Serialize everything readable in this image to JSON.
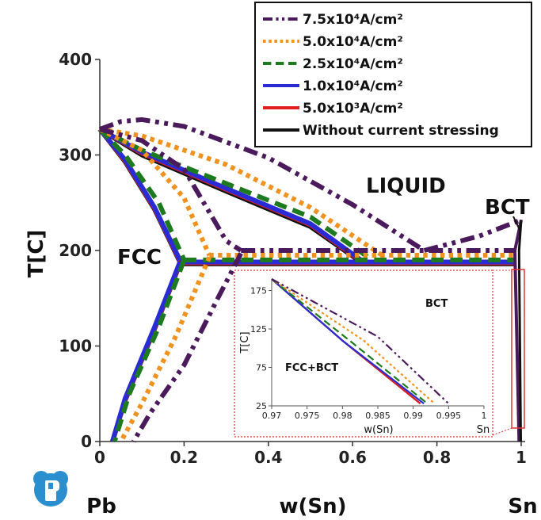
{
  "chart_data": {
    "type": "line",
    "xlabel": "w(Sn)",
    "ylabel": "T[C]",
    "xlim": [
      0,
      1
    ],
    "ylim": [
      0,
      400
    ],
    "x_ticks": [
      "0",
      "0.2",
      "0.4",
      "0.6",
      "0.8",
      "1"
    ],
    "y_ticks": [
      "0",
      "100",
      "200",
      "300",
      "400"
    ],
    "x_end_labels": {
      "left": "Pb",
      "right": "Sn"
    },
    "region_labels": [
      "LIQUID",
      "FCC",
      "BCT"
    ],
    "legend_position": "top-right",
    "series": [
      {
        "name": "7.5x10⁴A/cm²",
        "color": "#4b1a5c",
        "dash": "dash-dot-dot",
        "liquidus_left": [
          [
            0,
            327
          ],
          [
            0.05,
            335
          ],
          [
            0.1,
            337
          ],
          [
            0.2,
            330
          ],
          [
            0.4,
            297
          ],
          [
            0.6,
            248
          ],
          [
            0.77,
            200
          ]
        ],
        "solidus_left": [
          [
            0,
            327
          ],
          [
            0.1,
            315
          ],
          [
            0.2,
            285
          ],
          [
            0.3,
            210
          ],
          [
            0.335,
            200
          ]
        ],
        "solvus": [
          [
            0.335,
            197
          ],
          [
            0.28,
            150
          ],
          [
            0.2,
            80
          ],
          [
            0.12,
            30
          ],
          [
            0.08,
            0
          ]
        ],
        "eutectic_T": 200,
        "eutectic_x": [
          0.335,
          0.985
        ],
        "liquidus_right": [
          [
            0.77,
            200
          ],
          [
            0.9,
            215
          ],
          [
            1,
            232
          ]
        ],
        "inset_solvus": [
          [
            0.97,
            190
          ],
          [
            0.985,
            115
          ],
          [
            0.995,
            28
          ]
        ]
      },
      {
        "name": "5.0x10⁴A/cm²",
        "color": "#f0921f",
        "dash": "dot",
        "liquidus_left": [
          [
            0,
            327
          ],
          [
            0.1,
            320
          ],
          [
            0.3,
            290
          ],
          [
            0.5,
            245
          ],
          [
            0.67,
            195
          ]
        ],
        "solidus_left": [
          [
            0,
            327
          ],
          [
            0.1,
            305
          ],
          [
            0.2,
            255
          ],
          [
            0.26,
            195
          ]
        ],
        "solvus": [
          [
            0.26,
            193
          ],
          [
            0.18,
            110
          ],
          [
            0.1,
            40
          ],
          [
            0.05,
            0
          ]
        ],
        "eutectic_T": 195,
        "eutectic_x": [
          0.26,
          0.985
        ],
        "inset_solvus": [
          [
            0.97,
            190
          ],
          [
            0.983,
            110
          ],
          [
            0.993,
            28
          ]
        ]
      },
      {
        "name": "2.5x10⁴A/cm²",
        "color": "#1e7a1e",
        "dash": "dash",
        "liquidus_left": [
          [
            0,
            327
          ],
          [
            0.1,
            305
          ],
          [
            0.3,
            270
          ],
          [
            0.5,
            235
          ],
          [
            0.64,
            192
          ]
        ],
        "solidus_left": [
          [
            0,
            327
          ],
          [
            0.06,
            300
          ],
          [
            0.14,
            250
          ],
          [
            0.2,
            190
          ]
        ],
        "solvus": [
          [
            0.2,
            190
          ],
          [
            0.14,
            120
          ],
          [
            0.07,
            50
          ],
          [
            0.035,
            0
          ]
        ],
        "eutectic_T": 190,
        "eutectic_x": [
          0.2,
          0.985
        ],
        "inset_solvus": [
          [
            0.97,
            190
          ],
          [
            0.981,
            110
          ],
          [
            0.992,
            28
          ]
        ]
      },
      {
        "name": "1.0x10⁴A/cm²",
        "color": "#2b2bd6",
        "dash": "solid",
        "liquidus_left": [
          [
            0,
            327
          ],
          [
            0.1,
            303
          ],
          [
            0.3,
            265
          ],
          [
            0.5,
            228
          ],
          [
            0.62,
            190
          ]
        ],
        "solidus_left": [
          [
            0,
            327
          ],
          [
            0.06,
            295
          ],
          [
            0.13,
            245
          ],
          [
            0.19,
            190
          ]
        ],
        "solvus": [
          [
            0.19,
            188
          ],
          [
            0.13,
            120
          ],
          [
            0.06,
            45
          ],
          [
            0.03,
            0
          ]
        ],
        "eutectic_T": 188,
        "eutectic_x": [
          0.19,
          0.985
        ],
        "inset_solvus": [
          [
            0.97,
            190
          ],
          [
            0.98,
            110
          ],
          [
            0.9915,
            28
          ]
        ]
      },
      {
        "name": "5.0x10³A/cm²",
        "color": "#e02020",
        "dash": "solid",
        "liquidus_left": [
          [
            0,
            327
          ],
          [
            0.1,
            302
          ],
          [
            0.3,
            264
          ],
          [
            0.5,
            227
          ],
          [
            0.62,
            189
          ]
        ],
        "solidus_left": [
          [
            0,
            327
          ],
          [
            0.06,
            294
          ],
          [
            0.13,
            244
          ],
          [
            0.19,
            189
          ]
        ],
        "solvus": [
          [
            0.19,
            187
          ],
          [
            0.13,
            119
          ],
          [
            0.06,
            44
          ],
          [
            0.03,
            0
          ]
        ],
        "eutectic_T": 187,
        "eutectic_x": [
          0.19,
          0.985
        ],
        "inset_solvus": [
          [
            0.97,
            190
          ],
          [
            0.98,
            110
          ],
          [
            0.991,
            28
          ]
        ]
      },
      {
        "name": "Without current stressing",
        "color": "#111111",
        "dash": "solid",
        "liquidus_left": [
          [
            0,
            327
          ],
          [
            0.1,
            300
          ],
          [
            0.3,
            262
          ],
          [
            0.5,
            225
          ],
          [
            0.62,
            188
          ]
        ],
        "solidus_left": [
          [
            0,
            327
          ],
          [
            0.06,
            293
          ],
          [
            0.13,
            243
          ],
          [
            0.19,
            188
          ]
        ],
        "solvus": [
          [
            0.19,
            186
          ],
          [
            0.13,
            118
          ],
          [
            0.06,
            43
          ],
          [
            0.03,
            0
          ]
        ],
        "eutectic_T": 186,
        "eutectic_x": [
          0.19,
          0.985
        ],
        "inset_solvus": [
          [
            0.97,
            190
          ],
          [
            0.98,
            110
          ],
          [
            0.991,
            28
          ]
        ]
      }
    ],
    "inset": {
      "xlabel": "w(Sn)",
      "ylabel": "T[C]",
      "xlim": [
        0.97,
        1
      ],
      "ylim": [
        25,
        190
      ],
      "x_ticks": [
        "0.97",
        "0.975",
        "0.98",
        "0.985",
        "0.99",
        "0.995",
        "1"
      ],
      "y_ticks": [
        "25",
        "75",
        "125",
        "175"
      ],
      "end_label": "Sn",
      "region_labels": [
        "BCT",
        "FCC+BCT"
      ]
    }
  }
}
